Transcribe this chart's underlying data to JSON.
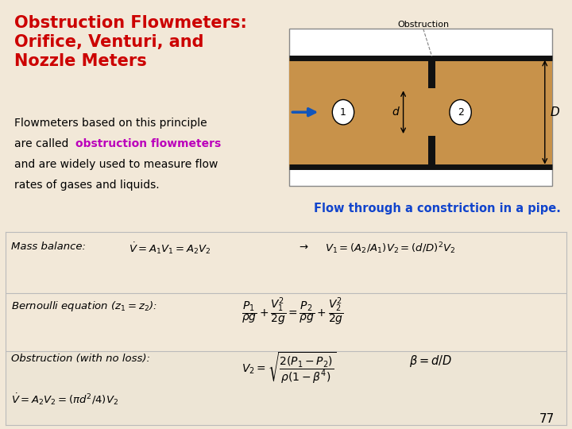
{
  "bg_color": "#f2e8d8",
  "title_text": "Obstruction Flowmeters:\nOrifice, Venturi, and\nNozzle Meters",
  "title_color": "#cc0000",
  "title_fontsize": 15,
  "highlight_color": "#bb00bb",
  "body_fontsize": 10,
  "caption_text": "Flow through a constriction in a pipe.",
  "caption_color": "#1144cc",
  "caption_fontsize": 10.5,
  "page_number": "77",
  "pipe_fill": "#c8924a",
  "pipe_wall_color": "#111111",
  "obstruction_color": "#111111",
  "arrow_color": "#1155bb",
  "eq_bg": "#ffffff",
  "eq_shaded": "#ede5d5",
  "eq_fontsize": 9.5,
  "eq_label_fontsize": 9.5
}
